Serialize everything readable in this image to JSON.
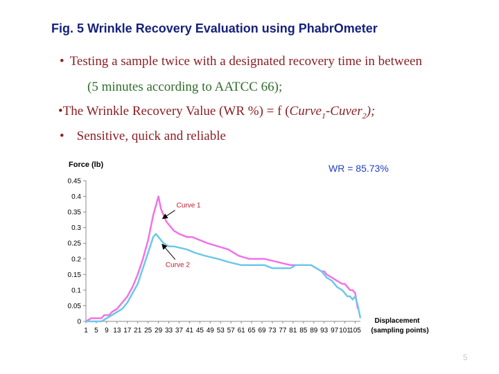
{
  "slide": {
    "title": "Fig. 5 Wrinkle Recovery Evaluation using PhabrOmeter",
    "bullet_char": "•",
    "bullet1": "Testing a sample twice with a designated recovery time in between",
    "bullet1_continuation": "(5 minutes according to AATCC 66);",
    "bullet2_prefix": "The Wrinkle Recovery Value (WR %) = f (",
    "bullet2_term1": "Curve",
    "bullet2_sub1": "1",
    "bullet2_minus": "-Cuver",
    "bullet2_sub2": "2",
    "bullet2_suffix": ");",
    "bullet3": "Sensitive, quick and reliable",
    "page_number": "5"
  },
  "chart_data": {
    "type": "line",
    "ylabel": "Force (lb)",
    "xlabel": "Displacement",
    "xlabel_line2": "(sampling points)",
    "annotation": "WR = 85.73%",
    "ylim": [
      0,
      0.45
    ],
    "yticks": [
      "0",
      "0.05",
      "0.1",
      "0.15",
      "0.2",
      "0.25",
      "0.3",
      "0.35",
      "0.4",
      "0.45"
    ],
    "xticks": [
      "1",
      "5",
      "9",
      "13",
      "17",
      "21",
      "25",
      "29",
      "33",
      "37",
      "41",
      "45",
      "49",
      "53",
      "57",
      "61",
      "65",
      "69",
      "73",
      "77",
      "81",
      "85",
      "89",
      "93",
      "97",
      "101",
      "105"
    ],
    "xlim": [
      1,
      107
    ],
    "grid": false,
    "legend": "none",
    "colors": {
      "curve1": "#f072e8",
      "curve2": "#6cc8e8",
      "axis": "#888888",
      "annotation": "#1f3fc4",
      "curve1_label": "#c0182a",
      "curve2_label": "#c0182a"
    },
    "series": [
      {
        "name": "Curve 1",
        "x": [
          1,
          3,
          4,
          7,
          8,
          10,
          11,
          13,
          15,
          17,
          19,
          21,
          23,
          25,
          27,
          28,
          29,
          30,
          32,
          33,
          35,
          37,
          40,
          42,
          45,
          48,
          52,
          56,
          60,
          64,
          66,
          70,
          75,
          80,
          85,
          88,
          90,
          92,
          93,
          94,
          96,
          98,
          100,
          101,
          102,
          103,
          104,
          105,
          106
        ],
        "y": [
          0,
          0.01,
          0.01,
          0.01,
          0.02,
          0.02,
          0.03,
          0.04,
          0.06,
          0.08,
          0.11,
          0.15,
          0.2,
          0.26,
          0.34,
          0.37,
          0.4,
          0.36,
          0.32,
          0.31,
          0.29,
          0.28,
          0.27,
          0.27,
          0.26,
          0.25,
          0.24,
          0.23,
          0.21,
          0.2,
          0.2,
          0.2,
          0.19,
          0.18,
          0.18,
          0.18,
          0.17,
          0.16,
          0.16,
          0.15,
          0.14,
          0.13,
          0.12,
          0.12,
          0.11,
          0.1,
          0.1,
          0.09,
          0.04
        ]
      },
      {
        "name": "Curve 2",
        "x": [
          1,
          3,
          5,
          7,
          9,
          11,
          13,
          15,
          17,
          19,
          21,
          23,
          25,
          27,
          28,
          29,
          30,
          31,
          33,
          35,
          40,
          43,
          47,
          52,
          56,
          61,
          64,
          70,
          73,
          80,
          82,
          85,
          88,
          90,
          92,
          94,
          96,
          98,
          100,
          101,
          102,
          103,
          104,
          105,
          106,
          107
        ],
        "y": [
          0,
          0,
          0,
          0,
          0.01,
          0.02,
          0.03,
          0.04,
          0.06,
          0.09,
          0.12,
          0.17,
          0.22,
          0.27,
          0.28,
          0.27,
          0.26,
          0.25,
          0.24,
          0.24,
          0.23,
          0.22,
          0.21,
          0.2,
          0.19,
          0.18,
          0.18,
          0.18,
          0.17,
          0.17,
          0.18,
          0.18,
          0.18,
          0.17,
          0.16,
          0.14,
          0.13,
          0.11,
          0.1,
          0.09,
          0.08,
          0.08,
          0.07,
          0.08,
          0.05,
          0.01
        ]
      }
    ],
    "labels": [
      {
        "text": "Curve 1",
        "series": 0,
        "point_x": 29
      },
      {
        "text": "Curve 2",
        "series": 1,
        "point_x": 28
      }
    ]
  }
}
